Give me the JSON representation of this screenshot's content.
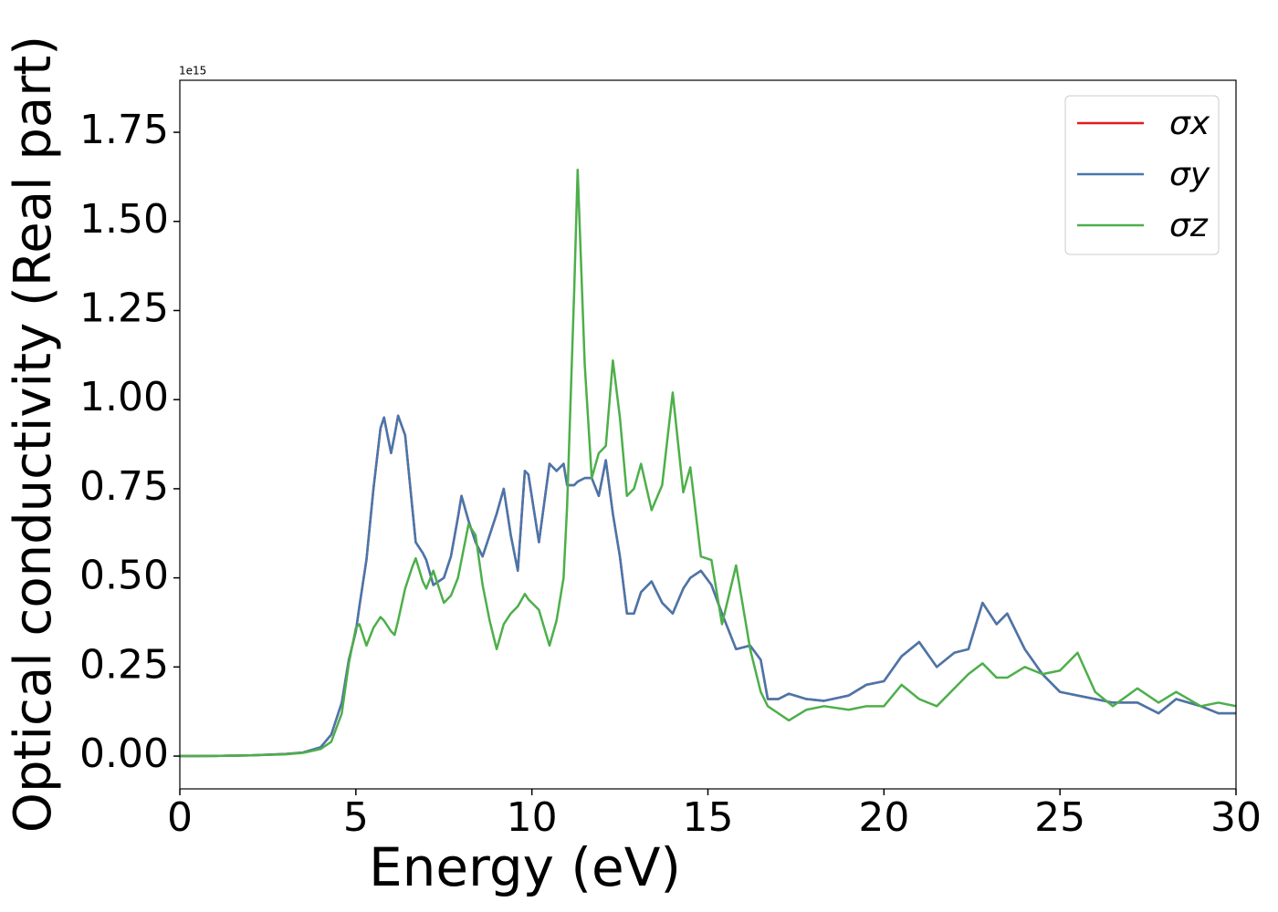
{
  "chart_data": {
    "type": "line",
    "xlabel": "Energy (eV)",
    "ylabel": "Optical conductivity (Real part)",
    "offset_label": "1e15",
    "x": [
      0,
      1,
      2,
      3,
      3.5,
      4,
      4.3,
      4.6,
      4.8,
      5.0,
      5.1,
      5.3,
      5.5,
      5.7,
      5.8,
      6.0,
      6.1,
      6.2,
      6.4,
      6.6,
      6.7,
      6.9,
      7.0,
      7.2,
      7.5,
      7.7,
      7.9,
      8.0,
      8.2,
      8.4,
      8.6,
      8.8,
      9.0,
      9.2,
      9.4,
      9.6,
      9.8,
      9.9,
      10.2,
      10.5,
      10.7,
      10.9,
      11.0,
      11.2,
      11.3,
      11.5,
      11.7,
      11.9,
      12.1,
      12.3,
      12.5,
      12.7,
      12.9,
      13.1,
      13.4,
      13.7,
      14.0,
      14.3,
      14.5,
      14.8,
      15.1,
      15.4,
      15.8,
      16.2,
      16.5,
      16.7,
      17.0,
      17.3,
      17.8,
      18.3,
      19,
      19.5,
      20,
      20.5,
      21,
      21.5,
      22,
      22.4,
      22.8,
      23.2,
      23.5,
      24,
      24.5,
      25,
      25.5,
      26,
      26.5,
      27.2,
      27.8,
      28.3,
      29,
      29.5,
      30
    ],
    "series": [
      {
        "name": "σx",
        "color": "#e41a1c",
        "values": [
          0,
          0.0005,
          0.002,
          0.006,
          0.01,
          0.025,
          0.06,
          0.15,
          0.27,
          0.35,
          0.42,
          0.55,
          0.75,
          0.92,
          0.95,
          0.85,
          0.9,
          0.955,
          0.9,
          0.7,
          0.6,
          0.57,
          0.55,
          0.48,
          0.5,
          0.56,
          0.67,
          0.73,
          0.66,
          0.6,
          0.56,
          0.62,
          0.68,
          0.75,
          0.62,
          0.52,
          0.8,
          0.79,
          0.6,
          0.82,
          0.8,
          0.82,
          0.76,
          0.76,
          0.77,
          0.78,
          0.78,
          0.73,
          0.83,
          0.68,
          0.56,
          0.4,
          0.4,
          0.46,
          0.49,
          0.43,
          0.4,
          0.47,
          0.5,
          0.52,
          0.48,
          0.4,
          0.3,
          0.31,
          0.27,
          0.16,
          0.16,
          0.175,
          0.16,
          0.155,
          0.17,
          0.2,
          0.21,
          0.28,
          0.32,
          0.25,
          0.29,
          0.3,
          0.43,
          0.37,
          0.4,
          0.3,
          0.23,
          0.18,
          0.17,
          0.16,
          0.15,
          0.15,
          0.12,
          0.16,
          0.14,
          0.12,
          0.12
        ]
      },
      {
        "name": "σy",
        "color": "#4677ad",
        "values": [
          0,
          0.0005,
          0.002,
          0.006,
          0.01,
          0.025,
          0.06,
          0.15,
          0.27,
          0.35,
          0.42,
          0.55,
          0.75,
          0.92,
          0.95,
          0.85,
          0.9,
          0.955,
          0.9,
          0.7,
          0.6,
          0.57,
          0.55,
          0.48,
          0.5,
          0.56,
          0.67,
          0.73,
          0.66,
          0.6,
          0.56,
          0.62,
          0.68,
          0.75,
          0.62,
          0.52,
          0.8,
          0.79,
          0.6,
          0.82,
          0.8,
          0.82,
          0.76,
          0.76,
          0.77,
          0.78,
          0.78,
          0.73,
          0.83,
          0.68,
          0.56,
          0.4,
          0.4,
          0.46,
          0.49,
          0.43,
          0.4,
          0.47,
          0.5,
          0.52,
          0.48,
          0.4,
          0.3,
          0.31,
          0.27,
          0.16,
          0.16,
          0.175,
          0.16,
          0.155,
          0.17,
          0.2,
          0.21,
          0.28,
          0.32,
          0.25,
          0.29,
          0.3,
          0.43,
          0.37,
          0.4,
          0.3,
          0.23,
          0.18,
          0.17,
          0.16,
          0.15,
          0.15,
          0.12,
          0.16,
          0.14,
          0.12,
          0.12
        ]
      },
      {
        "name": "σz",
        "color": "#4daf4a",
        "values": [
          0,
          0.0005,
          0.002,
          0.005,
          0.009,
          0.02,
          0.04,
          0.12,
          0.26,
          0.36,
          0.37,
          0.31,
          0.36,
          0.39,
          0.38,
          0.35,
          0.34,
          0.38,
          0.47,
          0.53,
          0.555,
          0.49,
          0.47,
          0.52,
          0.43,
          0.45,
          0.5,
          0.55,
          0.65,
          0.62,
          0.48,
          0.38,
          0.3,
          0.37,
          0.4,
          0.42,
          0.455,
          0.44,
          0.41,
          0.31,
          0.38,
          0.5,
          0.7,
          1.3,
          1.645,
          1.1,
          0.78,
          0.85,
          0.87,
          1.11,
          0.95,
          0.73,
          0.75,
          0.82,
          0.69,
          0.76,
          1.02,
          0.74,
          0.81,
          0.56,
          0.55,
          0.37,
          0.535,
          0.3,
          0.18,
          0.14,
          0.12,
          0.1,
          0.13,
          0.14,
          0.13,
          0.14,
          0.14,
          0.2,
          0.16,
          0.14,
          0.19,
          0.23,
          0.26,
          0.22,
          0.22,
          0.25,
          0.23,
          0.24,
          0.29,
          0.18,
          0.14,
          0.19,
          0.15,
          0.18,
          0.14,
          0.15,
          0.14
        ]
      }
    ],
    "xlim": [
      0,
      30
    ],
    "xticks": [
      0,
      5,
      10,
      15,
      20,
      25,
      30
    ],
    "ylim": [
      -0.092,
      1.896
    ],
    "yticks": [
      {
        "value": 0,
        "label": "0.00"
      },
      0.25,
      {
        "value": 0.5,
        "label": "0.50"
      },
      0.75,
      {
        "value": 1,
        "label": "1.00"
      },
      1.25,
      {
        "value": 1.5,
        "label": "1.50"
      },
      1.75
    ],
    "legend": "upper right",
    "grid": false
  }
}
